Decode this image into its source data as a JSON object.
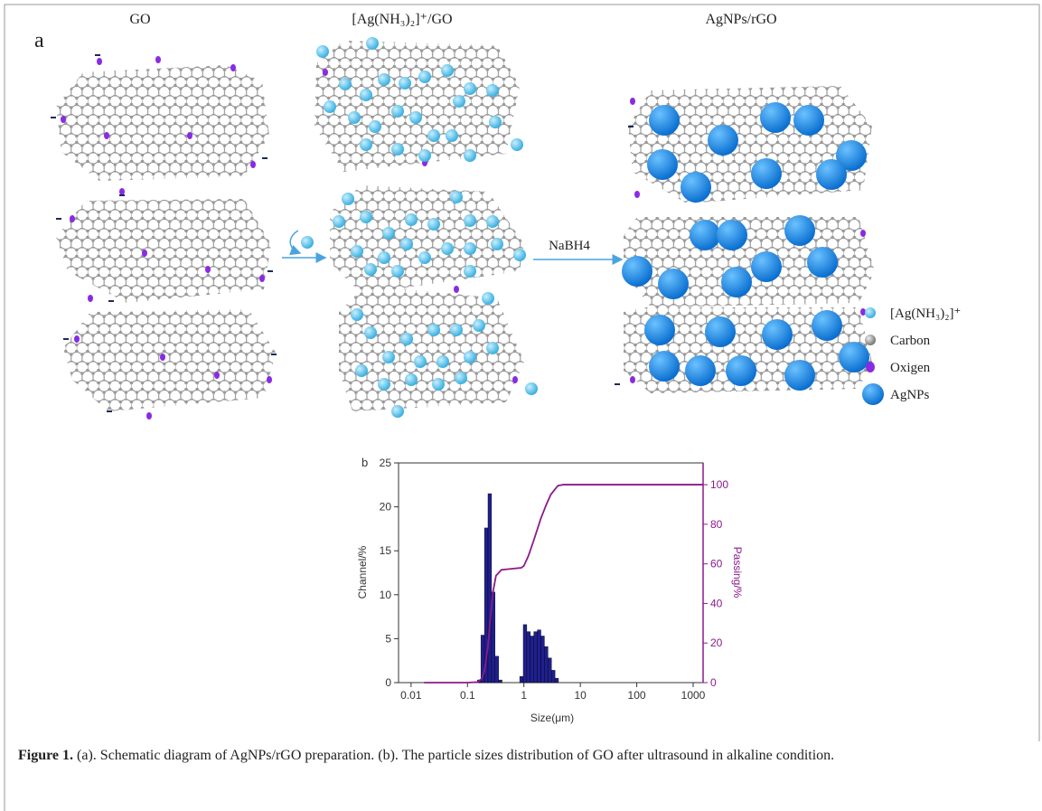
{
  "panel_a": {
    "label": "a",
    "titles": [
      "GO",
      "[Ag(NH₃)₂]⁺/GO",
      "AgNPs/rGO"
    ],
    "reagent": "NaBH4",
    "legend": [
      "[Ag(NH₃)₂]⁺",
      "Carbon",
      "Oxigen",
      "AgNPs"
    ]
  },
  "chart_data": {
    "type": "histogram",
    "panel_label": "b",
    "xlabel": "Size(μm)",
    "ylabel": "Channel/%",
    "y2label": "Passing/%",
    "xscale": "log",
    "xlim": [
      0.006,
      1500
    ],
    "xticks": [
      0.01,
      0.1,
      1,
      10,
      100,
      1000
    ],
    "ylim": [
      0,
      25
    ],
    "yticks": [
      0,
      5,
      10,
      15,
      20,
      25
    ],
    "y2lim": [
      0,
      111
    ],
    "y2ticks": [
      0,
      20,
      40,
      60,
      80,
      100
    ],
    "grid": false,
    "color": "#1f1f8f",
    "bins": [
      0.15,
      0.173,
      0.2,
      0.231,
      0.267,
      0.308,
      0.356,
      0.41,
      0.474,
      0.548,
      0.632,
      0.73,
      0.843,
      0.974,
      1.125,
      1.3,
      1.5,
      1.73,
      2.0,
      2.31,
      2.67,
      3.08,
      3.56,
      4.1
    ],
    "values": [
      0.3,
      5.4,
      17.6,
      21.5,
      10.3,
      3.0,
      0.3,
      0,
      0,
      0,
      0,
      0,
      0.7,
      6.6,
      5.8,
      5.3,
      5.8,
      6.0,
      5.3,
      4.1,
      2.8,
      1.4,
      0.5
    ],
    "cumulative": {
      "axis": "y2",
      "color": "#8b1a8b",
      "x": [
        0.017,
        0.1,
        0.15,
        0.18,
        0.2,
        0.23,
        0.25,
        0.28,
        0.32,
        0.4,
        0.6,
        0.9,
        1.0,
        1.2,
        1.5,
        2,
        2.5,
        3,
        4,
        5,
        10,
        100,
        1000,
        1500
      ],
      "values": [
        0,
        0,
        0.3,
        2,
        6,
        18,
        30,
        45,
        54,
        57,
        57.5,
        58,
        59,
        64,
        72,
        83,
        90,
        95,
        99.5,
        100,
        100,
        100,
        100,
        100
      ]
    }
  },
  "caption": {
    "label": "Figure 1.",
    "text": "(a). Schematic diagram of AgNPs/rGO preparation. (b). The particle sizes distribution of GO after ultrasound in alkaline condition."
  }
}
